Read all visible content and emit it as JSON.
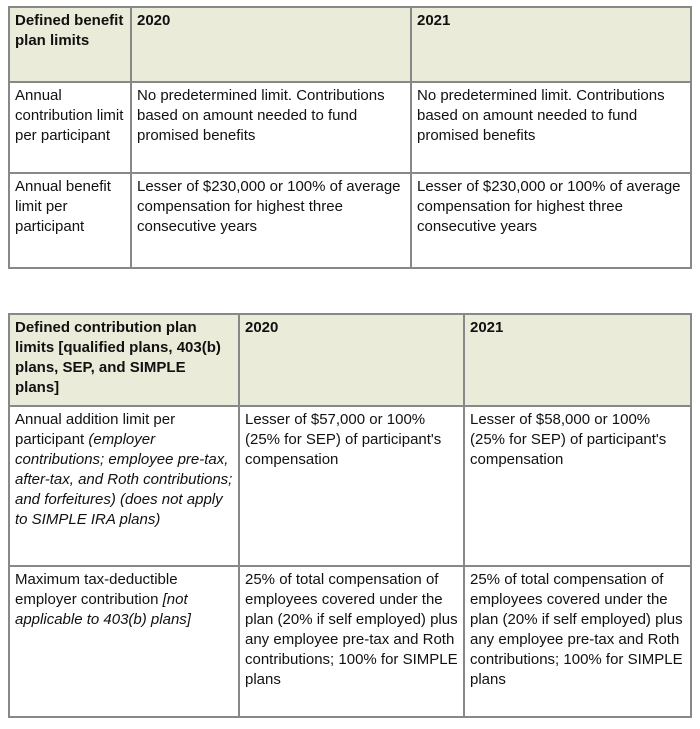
{
  "tables": [
    {
      "header": [
        "Defined benefit plan limits",
        "2020",
        "2021"
      ],
      "rows": [
        [
          "Annual contribution limit per participant",
          "No predetermined limit. Contributions based on amount needed to fund promised benefits",
          "No predetermined limit. Contributions based on amount needed to fund promised benefits"
        ],
        [
          "Annual benefit limit per participant",
          "Lesser of $230,000 or 100% of average compensation for highest three consecutive years",
          "Lesser of $230,000 or 100% of average compensation for highest three consecutive years"
        ]
      ]
    },
    {
      "header": [
        "Defined contribution plan limits [qualified plans, 403(b) plans, SEP, and SIMPLE plans]",
        "2020",
        "2021"
      ],
      "rows": [
        [
          {
            "text": "Annual addition limit per participant",
            "note": "(employer contributions; employee pre-tax, after-tax, and Roth contributions; and forfeitures) (does not apply to SIMPLE IRA plans)"
          },
          "Lesser of $57,000 or 100% (25% for SEP) of participant's compensation",
          "Lesser of $58,000 or 100% (25% for SEP) of participant's compensation"
        ],
        [
          {
            "text": "Maximum tax-deductible employer contribution",
            "note": "[not applicable to 403(b) plans]"
          },
          "25% of total compensation of employees covered under the plan (20% if self employed) plus any employee pre-tax and Roth contributions; 100% for SIMPLE plans",
          "25% of total compensation of employees covered under the plan (20% if self employed) plus any employee pre-tax and Roth contributions; 100% for SIMPLE plans"
        ]
      ]
    }
  ]
}
